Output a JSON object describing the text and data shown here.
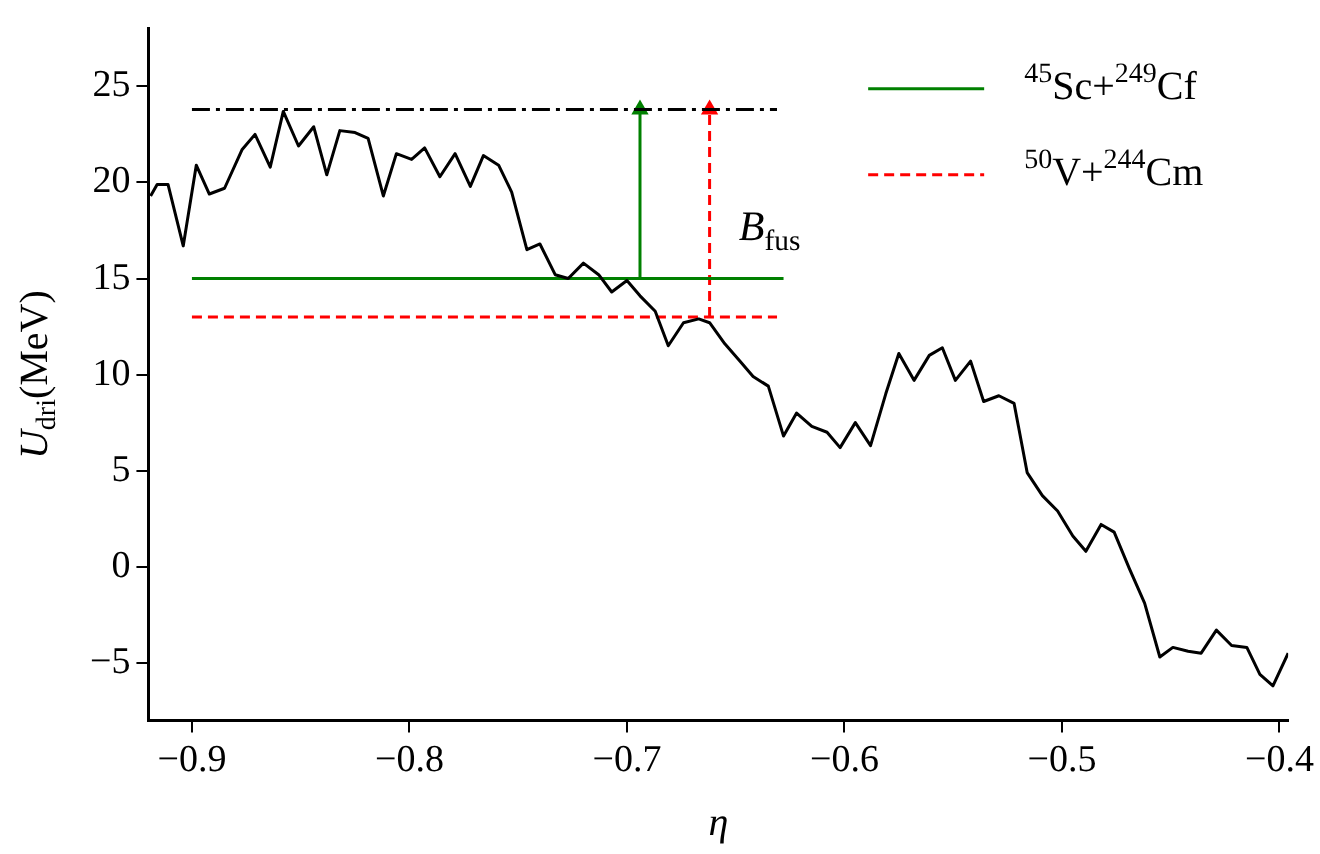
{
  "chart_data": {
    "type": "line",
    "xlabel": "η",
    "ylabel": "U$_{dri}$(MeV)",
    "xlim": [
      -0.92,
      -0.396
    ],
    "ylim": [
      -8,
      28
    ],
    "xticks": [
      {
        "value": -0.9,
        "label": "−0.9"
      },
      {
        "value": -0.8,
        "label": "−0.8"
      },
      {
        "value": -0.7,
        "label": "−0.7"
      },
      {
        "value": -0.6,
        "label": "−0.6"
      },
      {
        "value": -0.5,
        "label": "−0.5"
      },
      {
        "value": -0.4,
        "label": "−0.4"
      }
    ],
    "yticks": [
      {
        "value": -5,
        "label": "−5"
      },
      0,
      5,
      10,
      15,
      20,
      25
    ],
    "grid": false,
    "legend": "top right",
    "marker": "none",
    "annotations": [
      "B$_{fus}$"
    ],
    "series": [
      {
        "color": "#000000",
        "line_style": "solid",
        "x": [
          -0.919,
          -0.916,
          -0.911,
          -0.904,
          -0.898,
          -0.892,
          -0.885,
          -0.877,
          -0.871,
          -0.864,
          -0.858,
          -0.851,
          -0.844,
          -0.838,
          -0.832,
          -0.825,
          -0.819,
          -0.812,
          -0.806,
          -0.799,
          -0.793,
          -0.786,
          -0.779,
          -0.772,
          -0.766,
          -0.759,
          -0.753,
          -0.746,
          -0.74,
          -0.733,
          -0.727,
          -0.72,
          -0.713,
          -0.707,
          -0.7,
          -0.694,
          -0.687,
          -0.681,
          -0.674,
          -0.667,
          -0.662,
          -0.655,
          -0.648,
          -0.642,
          -0.635,
          -0.628,
          -0.622,
          -0.615,
          -0.608,
          -0.602,
          -0.595,
          -0.588,
          -0.581,
          -0.575,
          -0.568,
          -0.561,
          -0.555,
          -0.549,
          -0.542,
          -0.536,
          -0.529,
          -0.522,
          -0.516,
          -0.509,
          -0.502,
          -0.495,
          -0.489,
          -0.482,
          -0.476,
          -0.469,
          -0.462,
          -0.455,
          -0.449,
          -0.442,
          -0.436,
          -0.429,
          -0.422,
          -0.415,
          -0.409,
          -0.403,
          -0.396
        ],
        "values": [
          19.3,
          19.9,
          19.9,
          16.7,
          20.9,
          19.4,
          19.7,
          21.7,
          22.5,
          20.8,
          23.7,
          21.9,
          22.9,
          20.4,
          22.7,
          22.6,
          22.3,
          19.3,
          21.5,
          21.2,
          21.8,
          20.3,
          21.5,
          19.8,
          21.4,
          20.9,
          19.5,
          16.5,
          16.8,
          15.2,
          15.0,
          15.8,
          15.2,
          14.3,
          14.9,
          14.1,
          13.3,
          11.5,
          12.7,
          12.9,
          12.7,
          11.6,
          10.7,
          9.9,
          9.4,
          6.8,
          8.0,
          7.3,
          7.0,
          6.2,
          7.5,
          6.3,
          9.0,
          11.1,
          9.7,
          11.0,
          11.4,
          9.7,
          10.7,
          8.6,
          8.9,
          8.5,
          4.9,
          3.7,
          2.9,
          1.6,
          0.8,
          2.2,
          1.8,
          -0.1,
          -1.9,
          -4.7,
          -4.2,
          -4.4,
          -4.5,
          -3.3,
          -4.1,
          -4.2,
          -5.6,
          -6.2,
          -4.5
        ]
      },
      {
        "color": "#000000",
        "line_style": "dashdot",
        "x": [
          -0.9,
          -0.631
        ],
        "values": [
          23.8,
          23.8
        ]
      },
      {
        "name": "$^{45}$Sc+$^{249}$Cf",
        "color": "#008000",
        "line_style": "solid",
        "x": [
          -0.9,
          -0.628
        ],
        "values": [
          15,
          15
        ]
      },
      {
        "name": "$^{50}$V+$^{244}$Cm",
        "color": "#ff0000",
        "line_style": "dashed",
        "x": [
          -0.9,
          -0.631
        ],
        "values": [
          13,
          13
        ]
      },
      {
        "color": "#008000",
        "line_style": "solid",
        "marker": "triangle",
        "x": [
          -0.694,
          -0.694
        ],
        "values": [
          15,
          23.8
        ]
      },
      {
        "color": "#ff0000",
        "line_style": "dashed",
        "marker": "triangle",
        "x": [
          -0.662,
          -0.662
        ],
        "values": [
          13,
          23.8
        ]
      }
    ]
  }
}
